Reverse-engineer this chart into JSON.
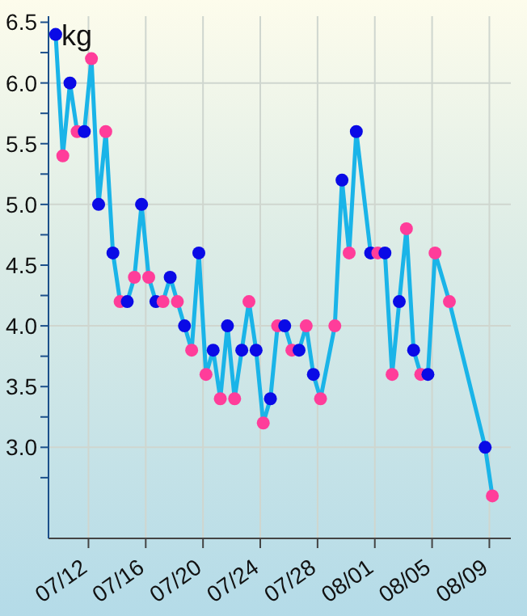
{
  "chart_data": {
    "type": "line",
    "ylabel": "kg",
    "x": [
      "--07-09T17:00",
      "--07-10T05:00",
      "--07-10T17:00",
      "--07-11T05:00",
      "--07-11T17:00",
      "--07-12T05:00",
      "--07-12T17:00",
      "--07-13T05:00",
      "--07-13T17:00",
      "--07-14T05:00",
      "--07-14T17:00",
      "--07-15T05:00",
      "--07-15T17:00",
      "--07-16T05:00",
      "--07-16T17:00",
      "--07-17T05:00",
      "--07-17T17:00",
      "--07-18T05:00",
      "--07-18T17:00",
      "--07-19T05:00",
      "--07-19T17:00",
      "--07-20T05:00",
      "--07-20T17:00",
      "--07-21T05:00",
      "--07-21T17:00",
      "--07-22T05:00",
      "--07-22T17:00",
      "--07-23T05:00",
      "--07-23T17:00",
      "--07-24T05:00",
      "--07-24T17:00",
      "--07-25T05:00",
      "--07-25T17:00",
      "--07-26T05:00",
      "--07-26T17:00",
      "--07-27T05:00",
      "--07-27T17:00",
      "--07-28T05:00",
      "--07-29T05:00",
      "--07-29T17:00",
      "--07-30T05:00",
      "--07-30T17:00",
      "--07-31T17:00",
      "--08-01T05:00",
      "--08-01T17:00",
      "--08-02T05:00",
      "--08-02T17:00",
      "--08-03T05:00",
      "--08-03T17:00",
      "--08-04T05:00",
      "--08-04T17:00",
      "--08-05T05:00",
      "--08-06T05:00",
      "--08-08T17:00",
      "--08-09T05:00"
    ],
    "series": [
      {
        "color": "#1ab4e8",
        "values": [
          6.4,
          5.4,
          6.0,
          5.6,
          5.6,
          6.2,
          5.0,
          5.6,
          4.6,
          4.2,
          4.2,
          4.4,
          5.0,
          4.4,
          4.2,
          4.2,
          4.4,
          4.2,
          4.0,
          3.8,
          4.6,
          3.6,
          3.8,
          3.4,
          4.0,
          3.4,
          3.8,
          4.2,
          3.8,
          3.2,
          3.4,
          4.0,
          4.0,
          3.8,
          3.8,
          4.0,
          3.6,
          3.4,
          4.0,
          5.2,
          4.6,
          5.6,
          4.6,
          4.6,
          4.6,
          3.6,
          4.2,
          4.8,
          3.8,
          3.6,
          3.6,
          4.6,
          4.2,
          3.0,
          2.6
        ],
        "colors": [
          "#0a0ae6",
          "#ff3d9a",
          "#0a0ae6",
          "#ff3d9a",
          "#0a0ae6",
          "#ff3d9a",
          "#0a0ae6",
          "#ff3d9a",
          "#0a0ae6",
          "#ff3d9a",
          "#0a0ae6",
          "#ff3d9a",
          "#0a0ae6",
          "#ff3d9a",
          "#0a0ae6",
          "#ff3d9a",
          "#0a0ae6",
          "#ff3d9a",
          "#0a0ae6",
          "#ff3d9a",
          "#0a0ae6",
          "#ff3d9a",
          "#0a0ae6",
          "#ff3d9a",
          "#0a0ae6",
          "#ff3d9a",
          "#0a0ae6",
          "#ff3d9a",
          "#0a0ae6",
          "#ff3d9a",
          "#0a0ae6",
          "#ff3d9a",
          "#0a0ae6",
          "#ff3d9a",
          "#0a0ae6",
          "#ff3d9a",
          "#0a0ae6",
          "#ff3d9a",
          "#ff3d9a",
          "#0a0ae6",
          "#ff3d9a",
          "#0a0ae6",
          "#0a0ae6",
          "#ff3d9a",
          "#0a0ae6",
          "#ff3d9a",
          "#0a0ae6",
          "#ff3d9a",
          "#0a0ae6",
          "#ff3d9a",
          "#0a0ae6",
          "#ff3d9a",
          "#ff3d9a",
          "#0a0ae6",
          "#ff3d9a"
        ]
      }
    ],
    "xlim": [
      "--07-09T05:00",
      "--08-10T12:00"
    ],
    "xticks": [
      {
        "value": "--07-12",
        "label": "07/12"
      },
      {
        "value": "--07-16",
        "label": "07/16"
      },
      {
        "value": "--07-20",
        "label": "07/20"
      },
      {
        "value": "--07-24",
        "label": "07/24"
      },
      {
        "value": "--07-28",
        "label": "07/28"
      },
      {
        "value": "--08-01",
        "label": "08/01"
      },
      {
        "value": "--08-05",
        "label": "08/05"
      },
      {
        "value": "--08-09",
        "label": "08/09"
      }
    ],
    "ylim": [
      2.25,
      6.55
    ],
    "yticks": [
      {
        "value": 2.75,
        "label": null
      },
      {
        "value": 3,
        "label": "3.0"
      },
      {
        "value": 3.25,
        "label": null
      },
      {
        "value": 3.5,
        "label": "3.5"
      },
      {
        "value": 3.75,
        "label": null
      },
      {
        "value": 4,
        "label": "4.0"
      },
      {
        "value": 4.25,
        "label": null
      },
      {
        "value": 4.5,
        "label": "4.5"
      },
      {
        "value": 4.75,
        "label": null
      },
      {
        "value": 5,
        "label": "5.0"
      },
      {
        "value": 5.25,
        "label": null
      },
      {
        "value": 5.5,
        "label": "5.5"
      },
      {
        "value": 5.75,
        "label": null
      },
      {
        "value": 6,
        "label": "6.0"
      },
      {
        "value": 6.25,
        "label": null
      },
      {
        "value": 6.5,
        "label": "6.5"
      }
    ],
    "grid": true,
    "marker": "circle",
    "line_style": "solid"
  }
}
